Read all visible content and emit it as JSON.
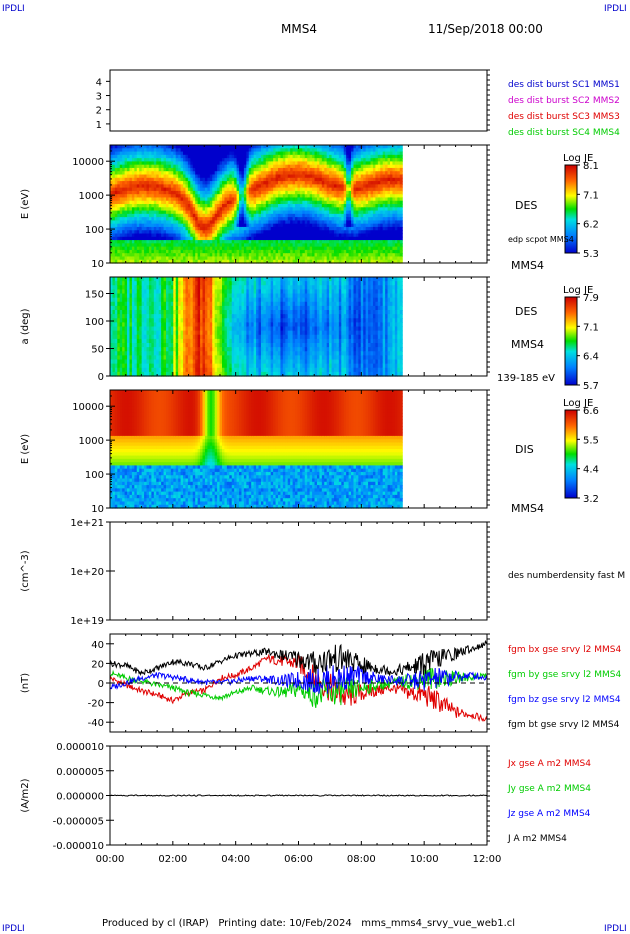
{
  "corner_label": "IPDLI",
  "header": {
    "spacecraft": "MMS4",
    "datetime": "11/Sep/2018 00:00"
  },
  "footer": {
    "text": "Produced by cl (IRAP)   Printing date: 10/Feb/2024   mms_mms4_srvy_vue_web1.cl"
  },
  "colors": {
    "red": "#e00000",
    "green": "#00cc00",
    "blue": "#0000ff",
    "magenta": "#cc00cc",
    "black": "#000000"
  },
  "chart_data": [
    {
      "id": "burst",
      "type": "line",
      "yticks": [
        "1",
        "2",
        "3",
        "4"
      ],
      "legend": [
        {
          "text": "des dist burst SC1 MMS1",
          "color": "#0000cc"
        },
        {
          "text": "des dist burst SC2 MMS2",
          "color": "#cc00cc"
        },
        {
          "text": "des dist burst SC3 MMS3",
          "color": "#e00000"
        },
        {
          "text": "des dist burst SC4 MMS4",
          "color": "#00cc00"
        }
      ]
    },
    {
      "id": "des_energy",
      "type": "heatmap",
      "ylabel": "E (eV)",
      "yscale": "log",
      "ylim": [
        10,
        30000
      ],
      "yticks": [
        "10",
        "100",
        "1000",
        "10000"
      ],
      "data_end_hour": 9.3,
      "label": "DES",
      "sublabel": "MMS4",
      "extra_label": "edp scpot MMS4",
      "colorbar": {
        "title": "Log JE",
        "ticks": [
          "8.1",
          "7.1",
          "6.2",
          "5.3"
        ]
      }
    },
    {
      "id": "des_pitch",
      "type": "heatmap",
      "ylabel": "a (deg)",
      "ylim": [
        0,
        180
      ],
      "yticks": [
        "0",
        "50",
        "100",
        "150"
      ],
      "data_end_hour": 9.3,
      "label": "DES",
      "sublabel": "MMS4",
      "range_label": "139-185 eV",
      "colorbar": {
        "title": "Log JE",
        "ticks": [
          "7.9",
          "7.1",
          "6.4",
          "5.7"
        ]
      }
    },
    {
      "id": "dis_energy",
      "type": "heatmap",
      "ylabel": "E (eV)",
      "yscale": "log",
      "ylim": [
        10,
        30000
      ],
      "yticks": [
        "10",
        "100",
        "1000",
        "10000"
      ],
      "data_end_hour": 9.3,
      "label": "DIS",
      "sublabel": "MMS4",
      "colorbar": {
        "title": "Log JE",
        "ticks": [
          "6.6",
          "5.5",
          "4.4",
          "3.2"
        ]
      }
    },
    {
      "id": "density",
      "type": "line",
      "ylabel": "(cm^-3)",
      "yscale": "log",
      "ylim": [
        1e+19,
        1e+21
      ],
      "yticks": [
        "1e+21",
        "1e+20",
        "1e+19"
      ],
      "legend": [
        {
          "text": "des numberdensity fast M",
          "color": "#000000"
        }
      ],
      "series": []
    },
    {
      "id": "fgm",
      "type": "line",
      "ylabel": "(nT)",
      "ylim": [
        -50,
        50
      ],
      "yticks": [
        "40",
        "20",
        "0",
        "-20",
        "-40"
      ],
      "legend": [
        {
          "text": "fgm bx gse srvy l2 MMS4",
          "color": "#e00000"
        },
        {
          "text": "fgm by gse srvy l2 MMS4",
          "color": "#00cc00"
        },
        {
          "text": "fgm bz gse srvy l2 MMS4",
          "color": "#0000ff"
        },
        {
          "text": "fgm bt gse srvy l2 MMS4",
          "color": "#000000"
        }
      ],
      "series": [
        {
          "name": "fgm bx gse srvy l2 MMS4",
          "color": "#e00000",
          "x": [
            0,
            0.5,
            1,
            1.5,
            2,
            2.5,
            3,
            3.5,
            4,
            4.5,
            5,
            5.5,
            6,
            6.5,
            7,
            7.5,
            8,
            8.5,
            9,
            9.5,
            10,
            10.5,
            11,
            11.5,
            12
          ],
          "values": [
            5,
            -2,
            -8,
            -12,
            -18,
            -10,
            -8,
            5,
            8,
            15,
            25,
            22,
            20,
            5,
            -5,
            -15,
            -10,
            -8,
            -5,
            -10,
            -12,
            -20,
            -30,
            -32,
            -38
          ]
        },
        {
          "name": "fgm by gse srvy l2 MMS4",
          "color": "#00cc00",
          "x": [
            0,
            0.5,
            1,
            1.5,
            2,
            2.5,
            3,
            3.5,
            4,
            4.5,
            5,
            5.5,
            6,
            6.5,
            7,
            7.5,
            8,
            8.5,
            9,
            9.5,
            10,
            10.5,
            11,
            11.5,
            12
          ],
          "values": [
            10,
            5,
            2,
            -2,
            -5,
            -10,
            -12,
            -15,
            -10,
            -5,
            -8,
            -10,
            -6,
            -12,
            -10,
            -8,
            -5,
            -2,
            0,
            2,
            5,
            5,
            5,
            6,
            8
          ]
        },
        {
          "name": "fgm bz gse srvy l2 MMS4",
          "color": "#0000ff",
          "x": [
            0,
            0.5,
            1,
            1.5,
            2,
            2.5,
            3,
            3.5,
            4,
            4.5,
            5,
            5.5,
            6,
            6.5,
            7,
            7.5,
            8,
            8.5,
            9,
            9.5,
            10,
            10.5,
            11,
            11.5,
            12
          ],
          "values": [
            -5,
            0,
            5,
            8,
            6,
            3,
            1,
            0,
            2,
            5,
            4,
            2,
            3,
            2,
            4,
            6,
            8,
            4,
            3,
            2,
            3,
            5,
            6,
            8,
            5
          ]
        },
        {
          "name": "fgm bt gse srvy l2 MMS4",
          "color": "#000000",
          "x": [
            0,
            0.5,
            1,
            1.5,
            2,
            2.5,
            3,
            3.5,
            4,
            4.5,
            5,
            5.5,
            6,
            6.5,
            7,
            7.5,
            8,
            8.5,
            9,
            9.5,
            10,
            10.5,
            11,
            11.5,
            12
          ],
          "values": [
            20,
            18,
            10,
            15,
            22,
            20,
            15,
            22,
            28,
            30,
            32,
            28,
            25,
            20,
            25,
            25,
            18,
            15,
            12,
            15,
            20,
            25,
            30,
            35,
            40
          ]
        }
      ]
    },
    {
      "id": "current",
      "type": "line",
      "ylabel": "(A/m2)",
      "ylim": [
        -1e-05,
        1e-05
      ],
      "yticks": [
        "0.000010",
        "0.000005",
        "0.000000",
        "-0.000005",
        "-0.000010"
      ],
      "legend": [
        {
          "text": "Jx gse A m2 MMS4",
          "color": "#e00000"
        },
        {
          "text": "Jy gse A m2 MMS4",
          "color": "#00cc00"
        },
        {
          "text": "Jz gse A m2 MMS4",
          "color": "#0000ff"
        },
        {
          "text": "J A m2 MMS4",
          "color": "#000000"
        }
      ],
      "series": [
        {
          "name": "J A m2 MMS4",
          "color": "#000000",
          "x": [
            0,
            12
          ],
          "values": [
            0,
            0
          ]
        }
      ]
    }
  ],
  "xaxis": {
    "ticks": [
      "00:00",
      "02:00",
      "04:00",
      "06:00",
      "08:00",
      "10:00",
      "12:00"
    ],
    "xlim": [
      0,
      12
    ]
  }
}
